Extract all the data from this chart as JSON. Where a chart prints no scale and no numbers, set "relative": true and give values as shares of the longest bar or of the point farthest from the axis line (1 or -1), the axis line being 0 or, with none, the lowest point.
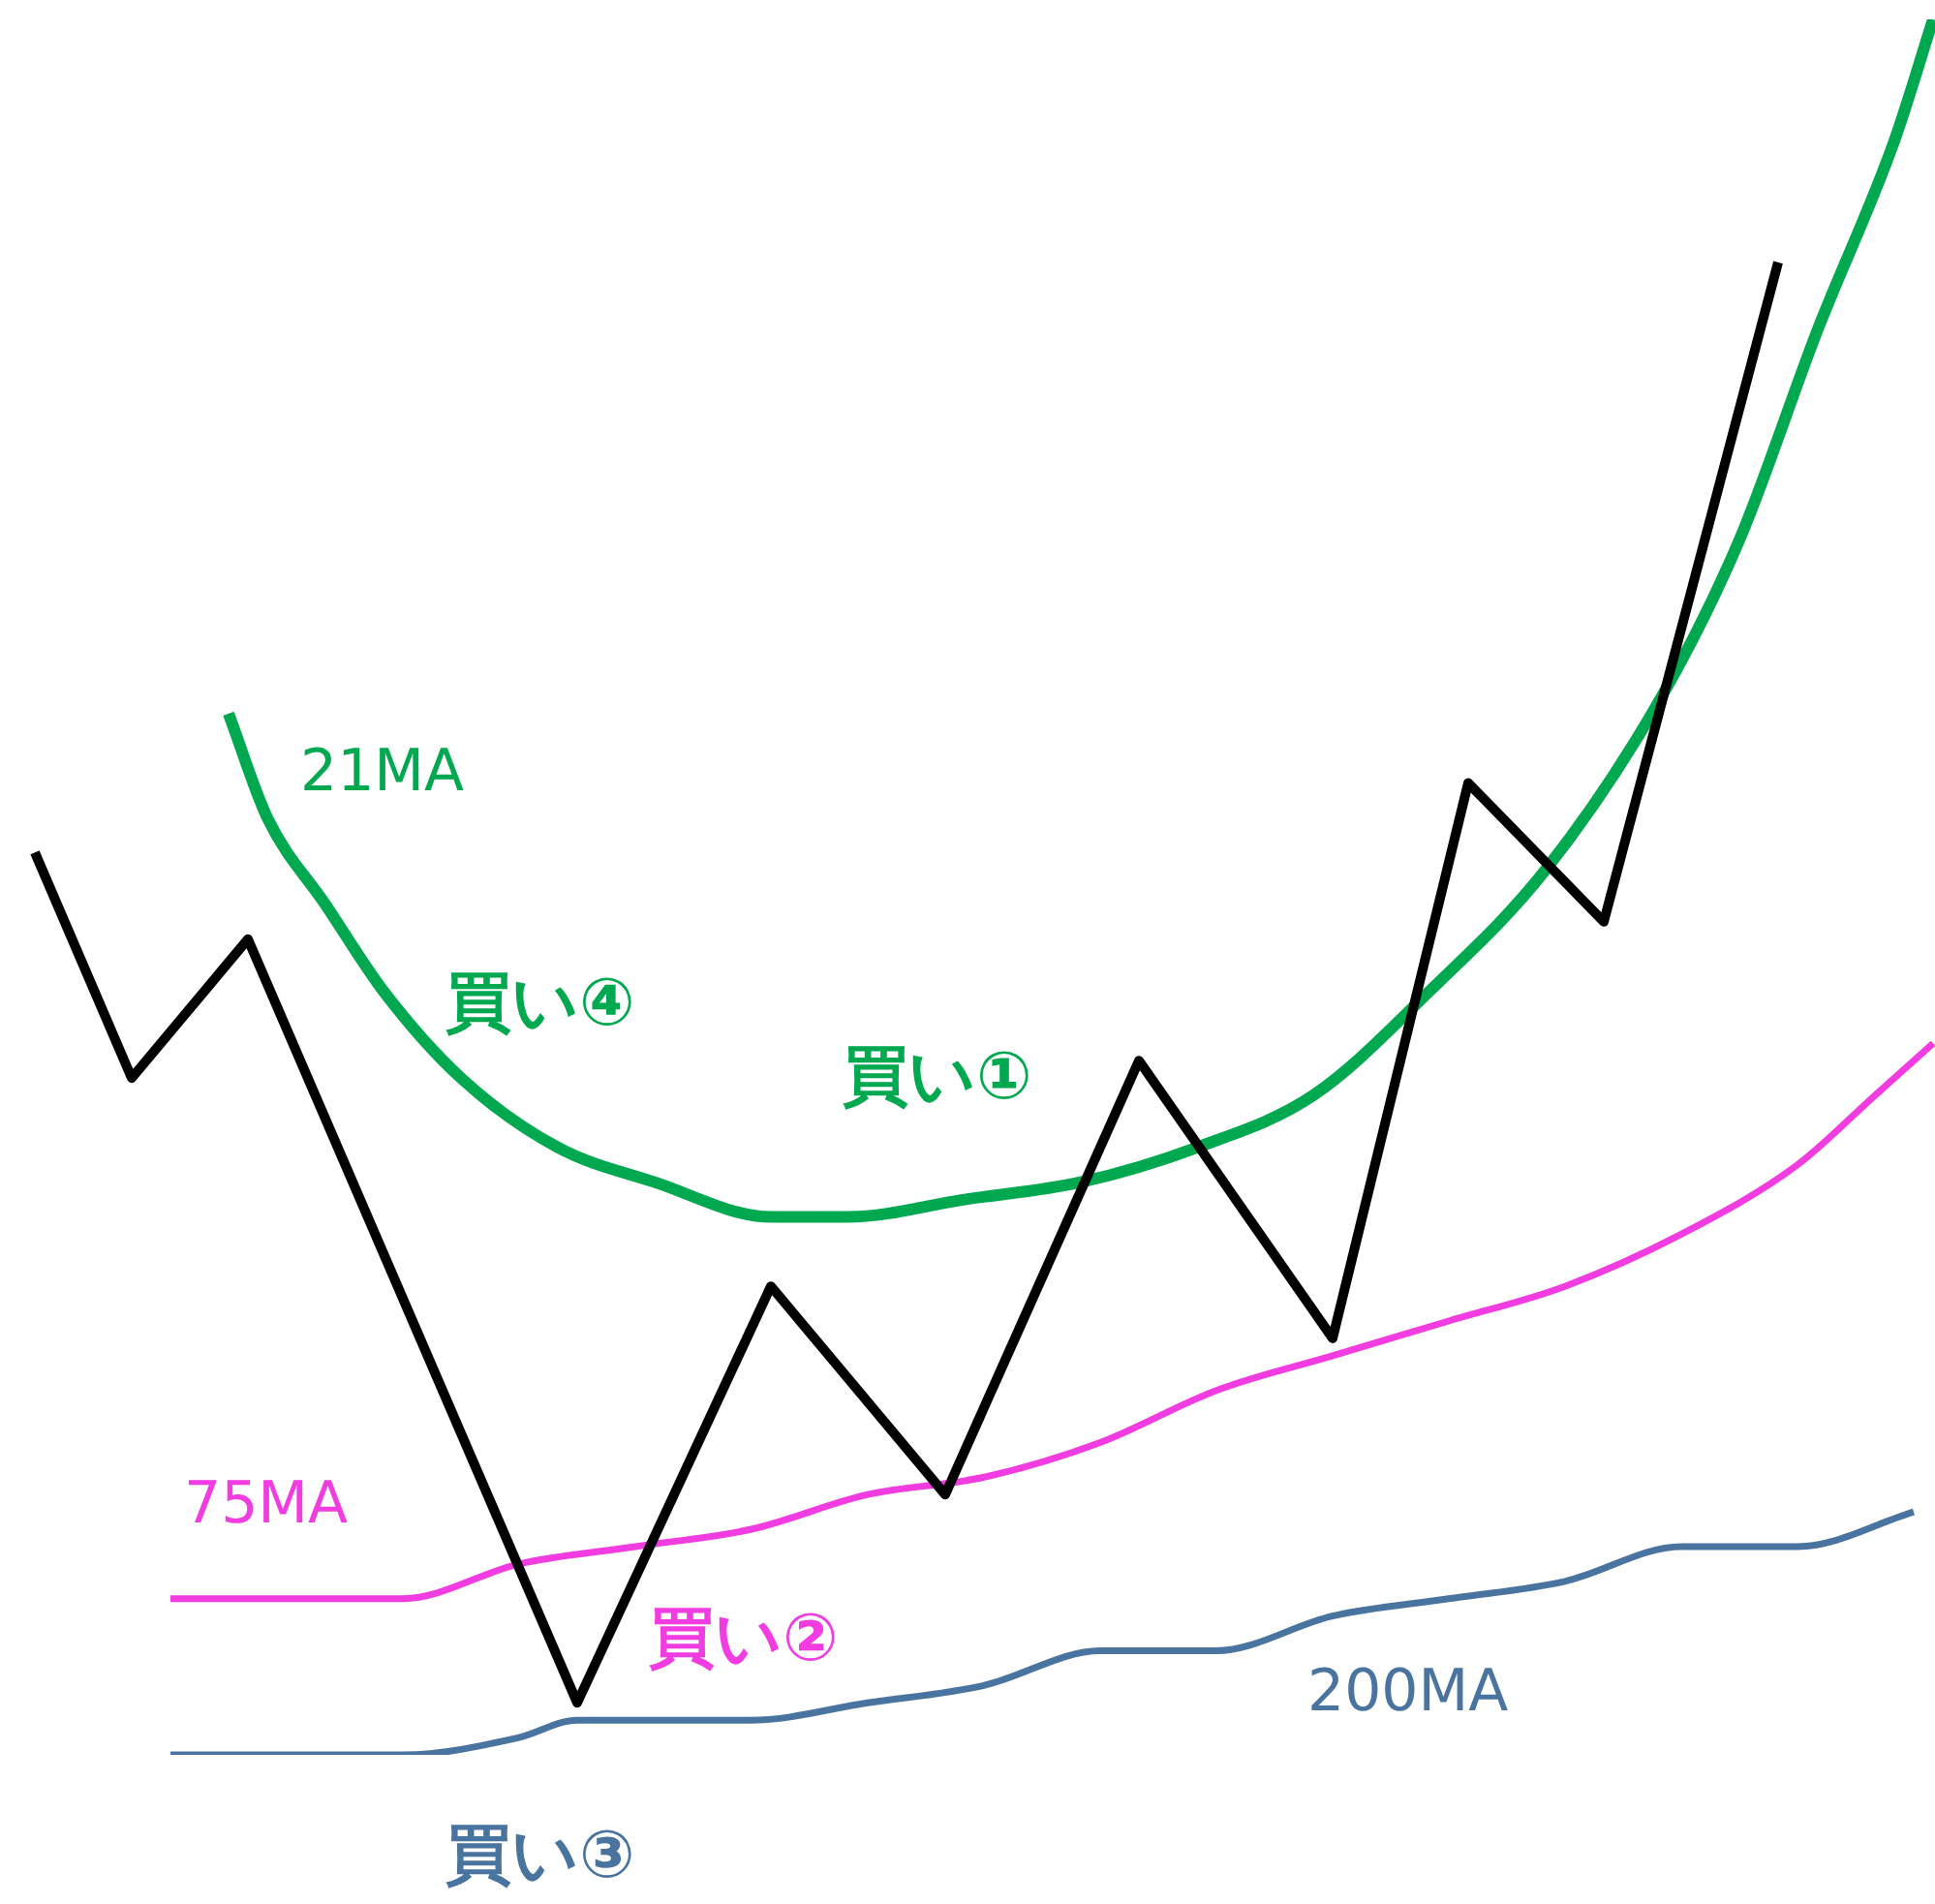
{
  "chart_data": {
    "type": "line",
    "relative": true,
    "marker": "none",
    "line_style": "solid",
    "legend": false,
    "tick_labels": false,
    "categories": [
      null,
      null,
      null,
      null,
      null,
      null,
      null,
      null,
      null,
      null,
      null,
      null,
      null,
      null,
      null,
      null,
      null,
      null,
      null,
      null,
      null,
      null,
      null,
      null,
      null,
      null,
      null,
      null,
      null,
      null,
      null,
      null,
      null,
      null,
      null,
      null,
      null,
      null,
      null,
      null,
      null,
      null,
      null,
      null,
      null,
      null,
      null,
      null,
      null,
      null,
      null,
      null,
      null,
      null,
      null,
      null,
      null,
      null,
      null,
      null,
      null,
      null,
      null,
      null,
      null,
      null,
      null,
      null,
      null,
      null,
      null,
      null,
      null,
      null,
      null,
      null,
      null,
      null,
      null,
      null,
      null,
      null,
      null,
      null,
      null,
      null,
      null,
      null,
      null,
      null,
      null,
      null,
      null,
      null,
      null,
      null,
      null,
      null,
      null
    ],
    "series": [
      {
        "color": "#000000",
        "values": [
          0.52,
          null,
          null,
          null,
          null,
          0.39,
          null,
          null,
          null,
          null,
          null,
          0.47,
          null,
          null,
          null,
          null,
          null,
          null,
          null,
          null,
          null,
          null,
          null,
          null,
          null,
          null,
          null,
          null,
          0.03,
          null,
          null,
          null,
          null,
          null,
          null,
          null,
          null,
          null,
          0.27,
          null,
          null,
          null,
          null,
          null,
          null,
          null,
          null,
          0.15,
          null,
          null,
          null,
          null,
          null,
          null,
          null,
          null,
          null,
          0.4,
          null,
          null,
          null,
          null,
          null,
          null,
          null,
          null,
          null,
          0.24,
          null,
          null,
          null,
          null,
          null,
          null,
          0.56,
          null,
          null,
          null,
          null,
          null,
          null,
          0.48,
          null,
          null,
          null,
          null,
          null,
          null,
          null,
          null,
          0.86,
          null,
          null,
          null,
          null,
          null,
          null,
          null,
          null
        ]
      },
      {
        "name": "21MA",
        "color": "#00a84f",
        "values": [
          null,
          null,
          null,
          null,
          null,
          null,
          null,
          null,
          null,
          null,
          0.6,
          null,
          0.54,
          null,
          null,
          0.49,
          null,
          null,
          0.44,
          null,
          null,
          null,
          0.39,
          null,
          null,
          null,
          null,
          0.35,
          null,
          null,
          null,
          null,
          0.33,
          null,
          null,
          null,
          null,
          null,
          0.31,
          null,
          null,
          null,
          0.31,
          null,
          null,
          null,
          null,
          null,
          0.32,
          null,
          null,
          null,
          null,
          null,
          0.33,
          null,
          null,
          null,
          null,
          null,
          0.35,
          null,
          null,
          null,
          null,
          null,
          0.38,
          null,
          null,
          null,
          null,
          null,
          0.44,
          null,
          null,
          null,
          null,
          null,
          0.51,
          null,
          null,
          null,
          null,
          null,
          0.61,
          null,
          null,
          null,
          0.7,
          null,
          null,
          null,
          0.82,
          null,
          null,
          null,
          0.93,
          null,
          1.0
        ]
      },
      {
        "name": "75MA",
        "color": "#f03ce0",
        "values": [
          null,
          null,
          null,
          null,
          null,
          null,
          null,
          0.09,
          null,
          null,
          null,
          null,
          null,
          0.09,
          null,
          null,
          null,
          null,
          null,
          0.09,
          null,
          null,
          null,
          null,
          null,
          0.11,
          null,
          null,
          null,
          null,
          null,
          0.12,
          null,
          null,
          null,
          null,
          null,
          0.13,
          null,
          null,
          null,
          null,
          null,
          0.15,
          null,
          null,
          null,
          null,
          null,
          0.16,
          null,
          null,
          null,
          null,
          null,
          0.18,
          null,
          null,
          null,
          null,
          null,
          0.21,
          null,
          null,
          null,
          null,
          null,
          0.23,
          null,
          null,
          null,
          null,
          null,
          0.25,
          null,
          null,
          null,
          null,
          null,
          0.27,
          null,
          null,
          null,
          null,
          null,
          0.3,
          null,
          null,
          null,
          null,
          null,
          0.34,
          null,
          null,
          null,
          0.38,
          null,
          null,
          0.41
        ]
      },
      {
        "name": "200MA",
        "color": "#4a74a0",
        "values": [
          null,
          null,
          null,
          null,
          null,
          null,
          null,
          0.0,
          null,
          null,
          null,
          null,
          null,
          0.0,
          null,
          null,
          null,
          null,
          null,
          0.0,
          null,
          null,
          null,
          null,
          null,
          0.01,
          null,
          null,
          0.02,
          null,
          null,
          0.02,
          null,
          null,
          null,
          null,
          null,
          0.02,
          null,
          null,
          null,
          null,
          null,
          0.03,
          null,
          null,
          null,
          null,
          null,
          0.04,
          null,
          null,
          null,
          null,
          null,
          0.06,
          null,
          null,
          null,
          null,
          null,
          0.06,
          null,
          null,
          null,
          null,
          null,
          0.08,
          null,
          null,
          null,
          null,
          null,
          0.09,
          null,
          null,
          null,
          null,
          null,
          0.1,
          null,
          null,
          null,
          null,
          null,
          0.12,
          null,
          null,
          null,
          null,
          null,
          0.12,
          null,
          null,
          null,
          null,
          null,
          0.14,
          null
        ]
      }
    ],
    "annotations": [
      "買い④",
      "買い①",
      "買い②",
      "買い③"
    ]
  }
}
